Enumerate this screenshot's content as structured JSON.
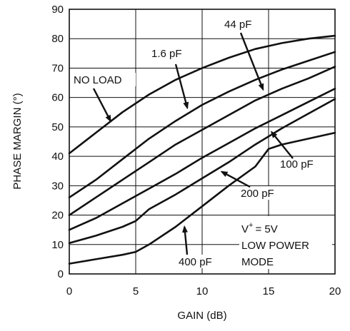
{
  "chart_data": {
    "type": "line",
    "xlabel": "GAIN (dB)",
    "ylabel": "PHASE MARGIN (°)",
    "xlim": [
      0,
      20
    ],
    "ylim": [
      0,
      90
    ],
    "x_ticks": [
      "0",
      "5",
      "10",
      "15",
      "20"
    ],
    "y_ticks": [
      "0",
      "10",
      "20",
      "30",
      "40",
      "50",
      "60",
      "70",
      "80",
      "90"
    ],
    "grid": true,
    "series": [
      {
        "name": "NO LOAD",
        "x": [
          0,
          2,
          4,
          6,
          8,
          10,
          12,
          14,
          16,
          18,
          20
        ],
        "y": [
          41,
          48,
          55,
          61,
          66,
          70,
          73.5,
          76.5,
          78.5,
          80,
          81
        ]
      },
      {
        "name": "1.6 pF",
        "x": [
          0,
          2,
          4,
          6,
          8,
          10,
          12,
          14,
          16,
          18,
          20
        ],
        "y": [
          26,
          32,
          39,
          46,
          52,
          57.5,
          62,
          66,
          69.5,
          72.5,
          75.5
        ]
      },
      {
        "name": "44 pF",
        "x": [
          0,
          2,
          4,
          6,
          8,
          10,
          12,
          14,
          16,
          18,
          20
        ],
        "y": [
          20,
          26,
          32,
          38,
          44,
          49,
          54,
          59,
          63,
          66.5,
          70.5
        ]
      },
      {
        "name": "100 pF",
        "x": [
          0,
          2,
          4,
          6,
          8,
          10,
          12,
          14,
          16,
          18,
          20
        ],
        "y": [
          15,
          19,
          24,
          29,
          34,
          39.5,
          44.5,
          49.5,
          54,
          58.5,
          63
        ]
      },
      {
        "name": "200 pF",
        "x": [
          0,
          2,
          4,
          5,
          6,
          8,
          10,
          12,
          14,
          16,
          18,
          20
        ],
        "y": [
          10.5,
          13,
          16,
          18,
          22,
          27,
          32.5,
          38,
          44,
          49.5,
          54.5,
          59.5
        ]
      },
      {
        "name": "400 pF",
        "x": [
          0,
          2,
          4,
          5,
          6,
          8,
          10,
          12,
          14,
          15,
          16,
          18,
          20
        ],
        "y": [
          3.5,
          5,
          6.5,
          7.5,
          10,
          16,
          23,
          30,
          36.5,
          42.5,
          44,
          46,
          48
        ]
      }
    ],
    "annotations": [
      {
        "text": "NO LOAD"
      },
      {
        "text": "1.6 pF"
      },
      {
        "text": "44 pF"
      },
      {
        "text": "100 pF"
      },
      {
        "text": "200 pF"
      },
      {
        "text": "400 pF"
      },
      {
        "text": "= 5V",
        "prefix": "V",
        "superscript": "+"
      },
      {
        "text": "LOW POWER"
      },
      {
        "text": "MODE"
      }
    ]
  }
}
